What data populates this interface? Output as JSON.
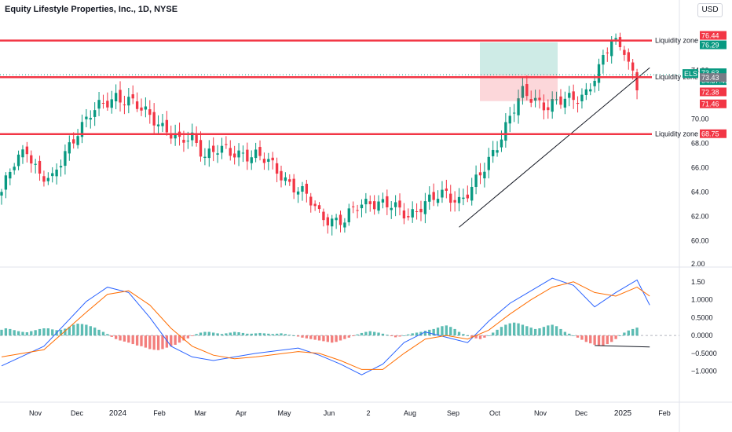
{
  "title": "Equity Lifestyle Properties, Inc., 1D, NYSE",
  "currency": "USD",
  "colors": {
    "up": "#089981",
    "down": "#f23645",
    "zone": "#f23645",
    "macd": "#2962ff",
    "signal": "#ff6d00",
    "hist_up": "#26a69a",
    "hist_down": "#ef5350"
  },
  "chart_data": [
    {
      "type": "line",
      "panel": "price",
      "ticker": "ELS",
      "x_tick_labels": [
        "Nov",
        "Dec",
        "2024",
        "Feb",
        "Mar",
        "Apr",
        "May",
        "Jun",
        "2",
        "Aug",
        "Sep",
        "Oct",
        "Nov",
        "Dec",
        "2025",
        "Feb"
      ],
      "y_tick_labels": [
        "60.00",
        "62.00",
        "64.00",
        "66.00",
        "68.00",
        "70.00",
        "74.00"
      ],
      "ylim": [
        58.6,
        78.8
      ],
      "series": [
        {
          "values": [
            [
              0,
              64.0
            ],
            [
              3,
              66.2
            ],
            [
              6,
              67.6
            ],
            [
              9,
              65.5
            ],
            [
              12,
              64.8
            ],
            [
              15,
              67.2
            ],
            [
              18,
              69.2
            ],
            [
              21,
              70.3
            ],
            [
              24,
              71.1
            ],
            [
              27,
              72.0
            ],
            [
              30,
              71.5
            ],
            [
              33,
              70.6
            ],
            [
              36,
              70.1
            ],
            [
              39,
              69.2
            ],
            [
              42,
              67.9
            ],
            [
              45,
              68.5
            ],
            [
              48,
              67.2
            ],
            [
              51,
              67.4
            ],
            [
              54,
              67.1
            ],
            [
              57,
              67.3
            ],
            [
              60,
              67.0
            ],
            [
              63,
              66.3
            ],
            [
              66,
              65.5
            ],
            [
              69,
              64.5
            ],
            [
              72,
              63.5
            ],
            [
              75,
              62.2
            ],
            [
              78,
              61.8
            ],
            [
              81,
              61.5
            ],
            [
              84,
              62.8
            ],
            [
              87,
              63.4
            ],
            [
              90,
              63.0
            ],
            [
              93,
              62.5
            ],
            [
              96,
              62.2
            ],
            [
              99,
              62.9
            ],
            [
              102,
              63.3
            ],
            [
              105,
              63.9
            ],
            [
              108,
              63.4
            ],
            [
              111,
              64.1
            ],
            [
              114,
              65.9
            ],
            [
              117,
              68.1
            ],
            [
              120,
              70.1
            ],
            [
              123,
              72.0
            ],
            [
              126,
              71.7
            ],
            [
              129,
              71.1
            ],
            [
              132,
              71.3
            ],
            [
              135,
              71.7
            ],
            [
              138,
              72.3
            ],
            [
              141,
              73.9
            ],
            [
              144,
              76.4
            ],
            [
              147,
              76.0
            ],
            [
              150,
              72.5
            ]
          ]
        }
      ],
      "levels": [
        {
          "label": "Liquidity zone",
          "value": 76.44
        },
        {
          "label": "Liquidity zone",
          "value": 73.43
        },
        {
          "label": "Liquidity zone",
          "value": 68.75
        }
      ],
      "trendline": [
        [
          108,
          61.1
        ],
        [
          153,
          74.2
        ]
      ],
      "price_labels": [
        "76.44",
        "76.29",
        "ELS",
        "73.63",
        "04:37:49",
        "73.43",
        "72.38",
        "71.46",
        "68.75"
      ]
    },
    {
      "type": "line",
      "panel": "macd",
      "y_tick_labels": [
        "2.00",
        "1.50",
        "1.0000",
        "0.5000",
        "0.0000",
        "−0.5000",
        "−1.0000"
      ],
      "ylim": [
        -1.6,
        2.0
      ],
      "series": [
        {
          "values": [
            [
              0,
              -0.85
            ],
            [
              10,
              -0.3
            ],
            [
              20,
              0.95
            ],
            [
              25,
              1.35
            ],
            [
              30,
              1.2
            ],
            [
              35,
              0.5
            ],
            [
              40,
              -0.3
            ],
            [
              45,
              -0.6
            ],
            [
              50,
              -0.7
            ],
            [
              55,
              -0.6
            ],
            [
              60,
              -0.5
            ],
            [
              70,
              -0.35
            ],
            [
              75,
              -0.55
            ],
            [
              80,
              -0.8
            ],
            [
              85,
              -1.1
            ],
            [
              90,
              -0.8
            ],
            [
              95,
              -0.2
            ],
            [
              100,
              0.1
            ],
            [
              105,
              -0.05
            ],
            [
              110,
              -0.2
            ],
            [
              115,
              0.4
            ],
            [
              120,
              0.9
            ],
            [
              125,
              1.25
            ],
            [
              130,
              1.6
            ],
            [
              135,
              1.4
            ],
            [
              140,
              0.8
            ],
            [
              145,
              1.2
            ],
            [
              150,
              1.55
            ],
            [
              153,
              0.85
            ]
          ]
        },
        {
          "values": [
            [
              0,
              -0.6
            ],
            [
              10,
              -0.4
            ],
            [
              20,
              0.65
            ],
            [
              25,
              1.15
            ],
            [
              30,
              1.25
            ],
            [
              35,
              0.85
            ],
            [
              40,
              0.2
            ],
            [
              45,
              -0.3
            ],
            [
              50,
              -0.55
            ],
            [
              55,
              -0.65
            ],
            [
              60,
              -0.6
            ],
            [
              70,
              -0.45
            ],
            [
              75,
              -0.5
            ],
            [
              80,
              -0.7
            ],
            [
              85,
              -0.95
            ],
            [
              90,
              -0.95
            ],
            [
              95,
              -0.5
            ],
            [
              100,
              -0.1
            ],
            [
              105,
              0.0
            ],
            [
              110,
              -0.1
            ],
            [
              115,
              0.15
            ],
            [
              120,
              0.6
            ],
            [
              125,
              1.0
            ],
            [
              130,
              1.35
            ],
            [
              135,
              1.5
            ],
            [
              140,
              1.2
            ],
            [
              145,
              1.1
            ],
            [
              150,
              1.35
            ],
            [
              153,
              1.1
            ]
          ]
        }
      ],
      "histogram": [
        0.16,
        0.2,
        0.18,
        0.15,
        0.12,
        0.1,
        0.09,
        0.12,
        0.15,
        0.18,
        0.2,
        0.2,
        0.17,
        0.15,
        0.16,
        0.19,
        0.24,
        0.3,
        0.33,
        0.32,
        0.3,
        0.26,
        0.22,
        0.16,
        0.1,
        0.04,
        -0.04,
        -0.1,
        -0.14,
        -0.17,
        -0.2,
        -0.24,
        -0.28,
        -0.3,
        -0.34,
        -0.38,
        -0.4,
        -0.41,
        -0.38,
        -0.34,
        -0.3,
        -0.26,
        -0.2,
        -0.14,
        -0.08,
        -0.02,
        0.04,
        0.08,
        0.1,
        0.1,
        0.08,
        0.06,
        0.04,
        0.06,
        0.08,
        0.1,
        0.09,
        0.07,
        0.05,
        0.05,
        0.06,
        0.07,
        0.06,
        0.05,
        0.04,
        0.05,
        0.06,
        0.04,
        0.02,
        0.0,
        -0.03,
        -0.06,
        -0.08,
        -0.1,
        -0.12,
        -0.14,
        -0.16,
        -0.18,
        -0.2,
        -0.18,
        -0.14,
        -0.1,
        -0.06,
        -0.02,
        0.03,
        0.07,
        0.1,
        0.12,
        0.1,
        0.08,
        0.05,
        0.02,
        -0.02,
        -0.05,
        -0.03,
        0.0,
        0.03,
        0.06,
        0.08,
        0.1,
        0.13,
        0.16,
        0.18,
        0.22,
        0.26,
        0.28,
        0.24,
        0.18,
        0.1,
        0.04,
        0.0,
        -0.04,
        -0.08,
        -0.1,
        -0.06,
        0.0,
        0.08,
        0.16,
        0.24,
        0.3,
        0.34,
        0.36,
        0.34,
        0.3,
        0.26,
        0.22,
        0.18,
        0.2,
        0.24,
        0.28,
        0.3,
        0.26,
        0.18,
        0.1,
        0.05,
        0.0,
        -0.06,
        -0.12,
        -0.18,
        -0.22,
        -0.26,
        -0.28,
        -0.28,
        -0.24,
        -0.18,
        -0.1,
        0.0,
        0.08,
        0.14,
        0.18,
        0.22,
        0.24,
        0.2,
        -0.1,
        -0.32
      ],
      "price_labels": []
    }
  ]
}
